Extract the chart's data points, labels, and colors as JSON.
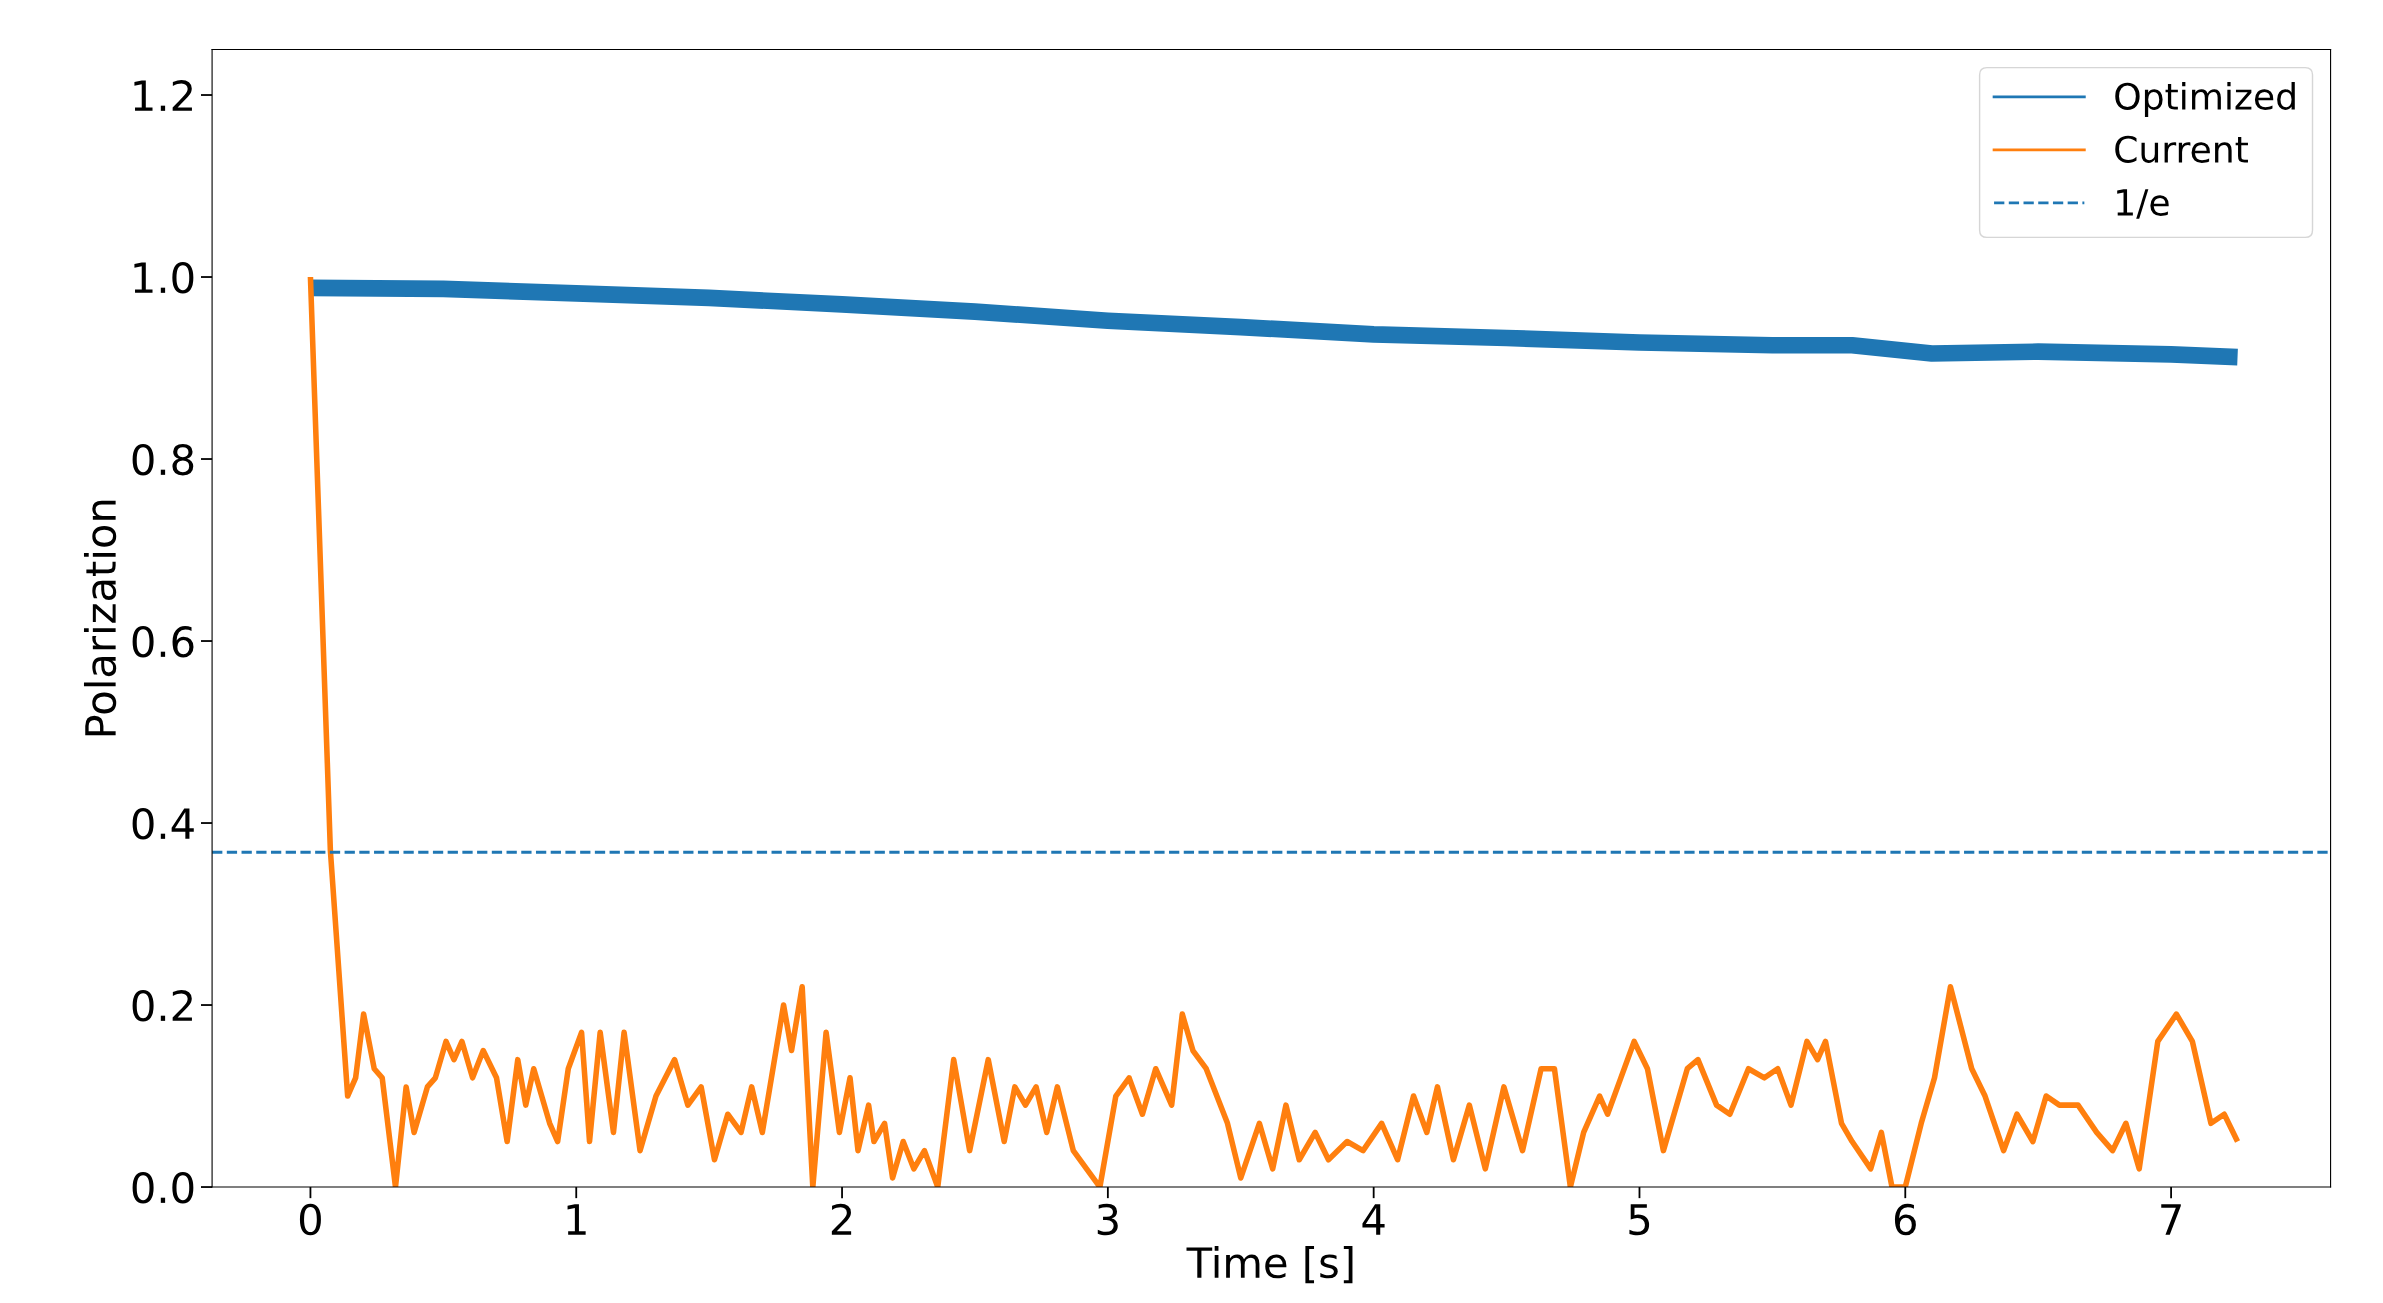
{
  "chart_data": {
    "type": "line",
    "xlabel": "Time [s]",
    "ylabel": "Polarization",
    "xlim": [
      -0.37,
      7.6
    ],
    "xticks": [
      0,
      1,
      2,
      3,
      4,
      5,
      6,
      7
    ],
    "ylim": [
      0,
      1.25
    ],
    "yticks": [
      {
        "value": 0,
        "label": "0.0"
      },
      0.2,
      0.4,
      0.6,
      0.8,
      {
        "value": 1,
        "label": "1.0"
      },
      1.2
    ],
    "legend": "top right",
    "grid": false,
    "series": [
      {
        "name": "Optimized",
        "color": "#1f77b4",
        "x": [
          0,
          0.5,
          1,
          1.5,
          2,
          2.5,
          3,
          3.5,
          4,
          4.5,
          5,
          5.5,
          5.8,
          6.1,
          6.5,
          7,
          7.25
        ],
        "values": [
          0.988,
          0.987,
          0.982,
          0.977,
          0.97,
          0.962,
          0.952,
          0.945,
          0.937,
          0.933,
          0.928,
          0.925,
          0.925,
          0.916,
          0.918,
          0.915,
          0.912
        ]
      },
      {
        "name": "Current",
        "color": "#ff7f0e",
        "x": [
          0.0,
          0.075,
          0.14,
          0.17,
          0.2,
          0.24,
          0.27,
          0.32,
          0.36,
          0.39,
          0.44,
          0.47,
          0.51,
          0.54,
          0.57,
          0.61,
          0.65,
          0.7,
          0.74,
          0.78,
          0.81,
          0.84,
          0.9,
          0.93,
          0.97,
          1.02,
          1.05,
          1.09,
          1.14,
          1.18,
          1.24,
          1.3,
          1.37,
          1.42,
          1.47,
          1.52,
          1.57,
          1.62,
          1.66,
          1.7,
          1.78,
          1.81,
          1.85,
          1.89,
          1.94,
          1.99,
          2.03,
          2.06,
          2.1,
          2.12,
          2.16,
          2.19,
          2.23,
          2.27,
          2.31,
          2.36,
          2.42,
          2.48,
          2.55,
          2.61,
          2.65,
          2.69,
          2.73,
          2.77,
          2.81,
          2.87,
          2.92,
          2.97,
          3.03,
          3.08,
          3.13,
          3.18,
          3.24,
          3.28,
          3.32,
          3.37,
          3.45,
          3.5,
          3.57,
          3.62,
          3.67,
          3.72,
          3.78,
          3.83,
          3.9,
          3.96,
          4.03,
          4.09,
          4.15,
          4.2,
          4.24,
          4.3,
          4.36,
          4.42,
          4.49,
          4.56,
          4.63,
          4.68,
          4.74,
          4.79,
          4.85,
          4.88,
          4.93,
          4.98,
          5.03,
          5.09,
          5.18,
          5.22,
          5.29,
          5.34,
          5.41,
          5.47,
          5.52,
          5.57,
          5.63,
          5.67,
          5.7,
          5.76,
          5.8,
          5.87,
          5.91,
          5.95,
          6.0,
          6.06,
          6.11,
          6.17,
          6.25,
          6.3,
          6.37,
          6.42,
          6.48,
          6.53,
          6.58,
          6.65,
          6.72,
          6.78,
          6.83,
          6.88,
          6.95,
          7.02,
          7.08,
          7.15,
          7.2,
          7.25
        ],
        "values": [
          1.0,
          0.37,
          0.1,
          0.12,
          0.19,
          0.13,
          0.12,
          0.0,
          0.11,
          0.06,
          0.11,
          0.12,
          0.16,
          0.14,
          0.16,
          0.12,
          0.15,
          0.12,
          0.05,
          0.14,
          0.09,
          0.13,
          0.07,
          0.05,
          0.13,
          0.17,
          0.05,
          0.17,
          0.06,
          0.17,
          0.04,
          0.1,
          0.14,
          0.09,
          0.11,
          0.03,
          0.08,
          0.06,
          0.11,
          0.06,
          0.2,
          0.15,
          0.22,
          0.0,
          0.17,
          0.06,
          0.12,
          0.04,
          0.09,
          0.05,
          0.07,
          0.01,
          0.05,
          0.02,
          0.04,
          0.0,
          0.14,
          0.04,
          0.14,
          0.05,
          0.11,
          0.09,
          0.11,
          0.06,
          0.11,
          0.04,
          0.02,
          0.0,
          0.1,
          0.12,
          0.08,
          0.13,
          0.09,
          0.19,
          0.15,
          0.13,
          0.07,
          0.01,
          0.07,
          0.02,
          0.09,
          0.03,
          0.06,
          0.03,
          0.05,
          0.04,
          0.07,
          0.03,
          0.1,
          0.06,
          0.11,
          0.03,
          0.09,
          0.02,
          0.11,
          0.04,
          0.13,
          0.13,
          0.0,
          0.06,
          0.1,
          0.08,
          0.12,
          0.16,
          0.13,
          0.04,
          0.13,
          0.14,
          0.09,
          0.08,
          0.13,
          0.12,
          0.13,
          0.09,
          0.16,
          0.14,
          0.16,
          0.07,
          0.05,
          0.02,
          0.06,
          0.0,
          0.0,
          0.07,
          0.12,
          0.22,
          0.13,
          0.1,
          0.04,
          0.08,
          0.05,
          0.1,
          0.09,
          0.09,
          0.06,
          0.04,
          0.07,
          0.02,
          0.16,
          0.19,
          0.16,
          0.07,
          0.08,
          0.05
        ]
      }
    ],
    "ref_lines": [
      {
        "axis": "y",
        "value": 0.3679,
        "label": "1/e",
        "color": "#1f77b4",
        "line_style": "dashed"
      }
    ]
  }
}
